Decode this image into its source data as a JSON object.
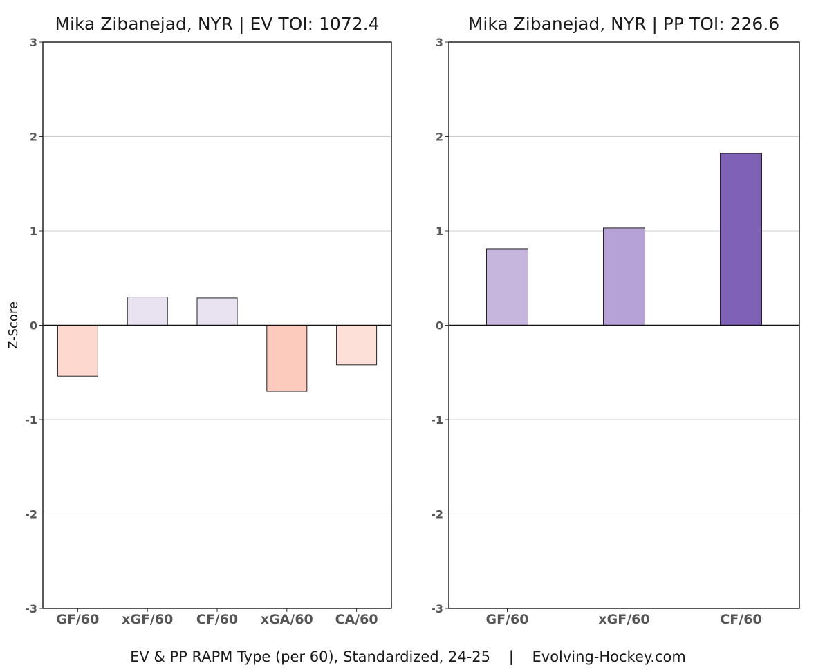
{
  "chart_data": [
    {
      "type": "bar",
      "title": "Mika Zibanejad, NYR  |  EV TOI: 1072.4",
      "ylabel": "Z-Score",
      "xlabel": "",
      "categories": [
        "GF/60",
        "xGF/60",
        "CF/60",
        "xGA/60",
        "CA/60"
      ],
      "values": [
        -0.54,
        0.3,
        0.29,
        -0.7,
        -0.42
      ],
      "colors": [
        "#fcd8cf",
        "#e8e2f1",
        "#e8e2f1",
        "#fccbbd",
        "#fde1d9"
      ],
      "ylim": [
        -3,
        3
      ],
      "yticks": [
        "-3",
        "-2",
        "-1",
        "0",
        "1",
        "2",
        "3"
      ],
      "grid": true
    },
    {
      "type": "bar",
      "title": "Mika Zibanejad, NYR  |  PP TOI: 226.6",
      "ylabel": "",
      "xlabel": "",
      "categories": [
        "GF/60",
        "xGF/60",
        "CF/60"
      ],
      "values": [
        0.81,
        1.03,
        1.82
      ],
      "colors": [
        "#c6b6de",
        "#b6a2d6",
        "#7f61b6"
      ],
      "ylim": [
        -3,
        3
      ],
      "yticks": [
        "-3",
        "-2",
        "-1",
        "0",
        "1",
        "2",
        "3"
      ],
      "grid": true
    }
  ],
  "caption": "EV & PP RAPM Type (per 60), Standardized, 24-25    |    Evolving-Hockey.com"
}
